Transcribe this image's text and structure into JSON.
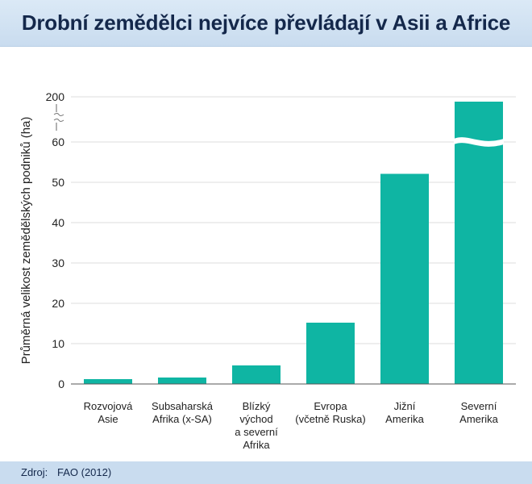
{
  "title": "Drobní zemědělci nejvíce převládají v Asii a Africe",
  "footer": {
    "source_label": "Zdroj:",
    "source_value": "FAO (2012)"
  },
  "colors": {
    "bar": "#0fb5a3",
    "header_bg": "#c9dcef",
    "title_text": "#14284b",
    "axis_text": "#222222",
    "grid": "#dddddd"
  },
  "chart_data": {
    "type": "bar",
    "title": "Drobní zemědělci nejvíce převládají v Asii a Africe",
    "ylabel": "Průměrná velikost zemědělských podniků (ha)",
    "xlabel": "",
    "categories": [
      [
        "Rozvojová",
        "Asie"
      ],
      [
        "Subsaharská",
        "Afrika (x-SA)"
      ],
      [
        "Blízký",
        "východ",
        "a severní",
        "Afrika"
      ],
      [
        "Evropa",
        "(včetně Ruska)"
      ],
      [
        "Jižní",
        "Amerika"
      ],
      [
        "Severní",
        "Amerika"
      ]
    ],
    "values": [
      1.2,
      1.6,
      4.6,
      15.2,
      52.1,
      185
    ],
    "y_ticks": [
      "0",
      "10",
      "20",
      "30",
      "40",
      "50",
      "60",
      "200"
    ],
    "ylim": [
      0,
      200
    ],
    "axis_break": [
      65,
      190
    ],
    "grid": true,
    "legend": "none"
  }
}
